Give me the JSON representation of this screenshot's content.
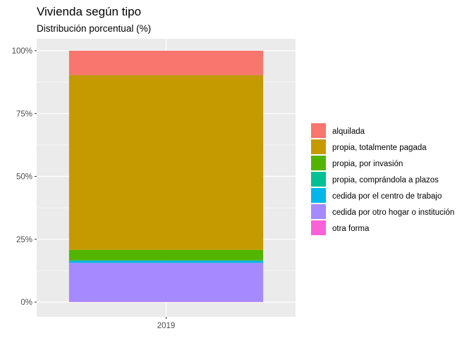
{
  "chart_data": {
    "type": "bar",
    "stacked": true,
    "title": "Vivienda según tipo",
    "subtitle": "Distribución porcentual (%)",
    "xlabel": "",
    "ylabel": "",
    "categories": [
      "2019"
    ],
    "ylim": [
      0,
      1
    ],
    "y_ticks": [
      {
        "value": 0,
        "label": "0%"
      },
      {
        "value": 0.25,
        "label": "25%"
      },
      {
        "value": 0.5,
        "label": "50%"
      },
      {
        "value": 0.75,
        "label": "75%"
      },
      {
        "value": 1,
        "label": "100%"
      }
    ],
    "grid": true,
    "legend_position": "right",
    "series": [
      {
        "name": "alquilada",
        "color": "#F8766D",
        "values": [
          0.097
        ]
      },
      {
        "name": "propia, totalmente pagada",
        "color": "#C49A00",
        "values": [
          0.695
        ]
      },
      {
        "name": "propia, por invasión",
        "color": "#53B400",
        "values": [
          0.042
        ]
      },
      {
        "name": "propia, comprándola a plazos",
        "color": "#00C094",
        "values": [
          0.002
        ]
      },
      {
        "name": "cedida por el centro de trabajo",
        "color": "#00B6EB",
        "values": [
          0.008
        ]
      },
      {
        "name": "cedida por otro hogar o institución",
        "color": "#A58AFF",
        "values": [
          0.155
        ]
      },
      {
        "name": "otra forma",
        "color": "#FB61D7",
        "values": [
          0.001
        ]
      }
    ]
  }
}
